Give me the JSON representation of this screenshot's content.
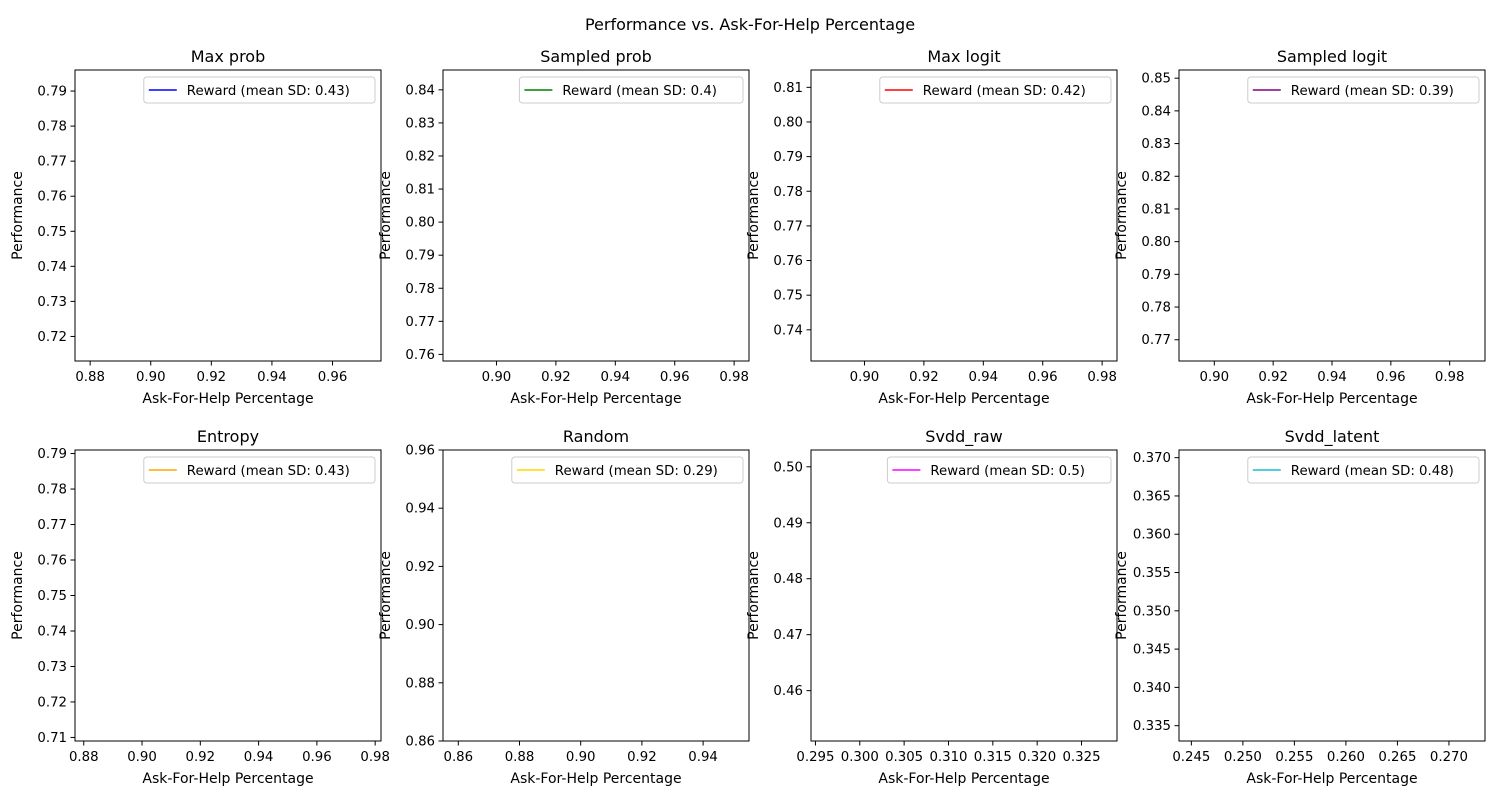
{
  "figure_title": "Performance vs. Ask-For-Help Percentage",
  "chart_data": [
    {
      "type": "line",
      "title": "Max prob",
      "xlabel": "Ask-For-Help Percentage",
      "ylabel": "Performance",
      "xlim": [
        0.875,
        0.976
      ],
      "ylim": [
        0.713,
        0.796
      ],
      "xticks": [
        "0.88",
        "0.90",
        "0.92",
        "0.94",
        "0.96"
      ],
      "yticks": [
        "0.72",
        "0.73",
        "0.74",
        "0.75",
        "0.76",
        "0.77",
        "0.78",
        "0.79"
      ],
      "series": [
        {
          "name": "Reward (mean SD: 0.43)",
          "color": "#0000ff",
          "x": [],
          "y": []
        }
      ],
      "grid": false,
      "legend": "top-right"
    },
    {
      "type": "line",
      "title": "Sampled prob",
      "xlabel": "Ask-For-Help Percentage",
      "ylabel": "Performance",
      "xlim": [
        0.882,
        0.985
      ],
      "ylim": [
        0.758,
        0.846
      ],
      "xticks": [
        "0.90",
        "0.92",
        "0.94",
        "0.96",
        "0.98"
      ],
      "yticks": [
        "0.76",
        "0.77",
        "0.78",
        "0.79",
        "0.80",
        "0.81",
        "0.82",
        "0.83",
        "0.84"
      ],
      "series": [
        {
          "name": "Reward (mean SD: 0.4)",
          "color": "#008000",
          "x": [],
          "y": []
        }
      ],
      "grid": false,
      "legend": "top-right"
    },
    {
      "type": "line",
      "title": "Max logit",
      "xlabel": "Ask-For-Help Percentage",
      "ylabel": "Performance",
      "xlim": [
        0.882,
        0.985
      ],
      "ylim": [
        0.731,
        0.815
      ],
      "xticks": [
        "0.90",
        "0.92",
        "0.94",
        "0.96",
        "0.98"
      ],
      "yticks": [
        "0.74",
        "0.75",
        "0.76",
        "0.77",
        "0.78",
        "0.79",
        "0.80",
        "0.81"
      ],
      "series": [
        {
          "name": "Reward (mean SD: 0.42)",
          "color": "#ff0000",
          "x": [],
          "y": []
        }
      ],
      "grid": false,
      "legend": "top-right"
    },
    {
      "type": "line",
      "title": "Sampled logit",
      "xlabel": "Ask-For-Help Percentage",
      "ylabel": "Performance",
      "xlim": [
        0.888,
        0.992
      ],
      "ylim": [
        0.7635,
        0.8525
      ],
      "xticks": [
        "0.90",
        "0.92",
        "0.94",
        "0.96",
        "0.98"
      ],
      "yticks": [
        "0.77",
        "0.78",
        "0.79",
        "0.80",
        "0.81",
        "0.82",
        "0.83",
        "0.84",
        "0.85"
      ],
      "series": [
        {
          "name": "Reward (mean SD: 0.39)",
          "color": "#800080",
          "x": [],
          "y": []
        }
      ],
      "grid": false,
      "legend": "top-right"
    },
    {
      "type": "line",
      "title": "Entropy",
      "xlabel": "Ask-For-Help Percentage",
      "ylabel": "Performance",
      "xlim": [
        0.877,
        0.982
      ],
      "ylim": [
        0.709,
        0.791
      ],
      "xticks": [
        "0.88",
        "0.90",
        "0.92",
        "0.94",
        "0.96",
        "0.98"
      ],
      "yticks": [
        "0.71",
        "0.72",
        "0.73",
        "0.74",
        "0.75",
        "0.76",
        "0.77",
        "0.78",
        "0.79"
      ],
      "series": [
        {
          "name": "Reward (mean SD: 0.43)",
          "color": "#ffa500",
          "x": [],
          "y": []
        }
      ],
      "grid": false,
      "legend": "top-right"
    },
    {
      "type": "line",
      "title": "Random",
      "xlabel": "Ask-For-Help Percentage",
      "ylabel": "Performance",
      "xlim": [
        0.855,
        0.955
      ],
      "ylim": [
        0.86,
        0.96
      ],
      "xticks": [
        "0.86",
        "0.88",
        "0.90",
        "0.92",
        "0.94"
      ],
      "yticks": [
        "0.86",
        "0.88",
        "0.90",
        "0.92",
        "0.94",
        "0.96"
      ],
      "series": [
        {
          "name": "Reward (mean SD: 0.29)",
          "color": "#ffd700",
          "x": [],
          "y": []
        }
      ],
      "grid": false,
      "legend": "top-right"
    },
    {
      "type": "line",
      "title": "Svdd_raw",
      "xlabel": "Ask-For-Help Percentage",
      "ylabel": "Performance",
      "xlim": [
        0.2945,
        0.329
      ],
      "ylim": [
        0.451,
        0.503
      ],
      "xticks": [
        "0.295",
        "0.300",
        "0.305",
        "0.310",
        "0.315",
        "0.320",
        "0.325"
      ],
      "yticks": [
        "0.46",
        "0.47",
        "0.48",
        "0.49",
        "0.50"
      ],
      "series": [
        {
          "name": "Reward (mean SD: 0.5)",
          "color": "#ff00ff",
          "x": [],
          "y": []
        }
      ],
      "grid": false,
      "legend": "top-right"
    },
    {
      "type": "line",
      "title": "Svdd_latent",
      "xlabel": "Ask-For-Help Percentage",
      "ylabel": "Performance",
      "xlim": [
        0.2438,
        0.2735
      ],
      "ylim": [
        0.333,
        0.371
      ],
      "xticks": [
        "0.245",
        "0.250",
        "0.255",
        "0.260",
        "0.265",
        "0.270"
      ],
      "yticks": [
        "0.335",
        "0.340",
        "0.345",
        "0.350",
        "0.355",
        "0.360",
        "0.365",
        "0.370"
      ],
      "series": [
        {
          "name": "Reward (mean SD: 0.48)",
          "color": "#17becf",
          "x": [],
          "y": []
        }
      ],
      "grid": false,
      "legend": "top-right"
    }
  ]
}
